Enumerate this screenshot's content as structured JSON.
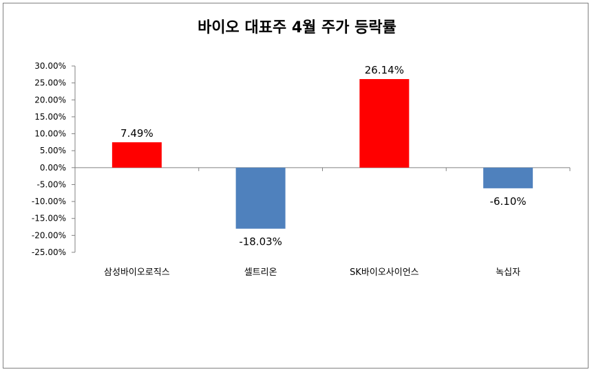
{
  "chart_data": {
    "type": "bar",
    "title": "바이오 대표주  4월 주가 등락률",
    "categories": [
      "삼성바이오로직스",
      "셀트리온",
      "SK바이오사이언스",
      "녹십자"
    ],
    "values": [
      7.49,
      -18.03,
      26.14,
      -6.1
    ],
    "data_labels": [
      "7.49%",
      "-18.03%",
      "26.14%",
      "-6.10%"
    ],
    "ylim": [
      -25,
      30
    ],
    "yticks": [
      30,
      25,
      20,
      15,
      10,
      5,
      0,
      -5,
      -10,
      -15,
      -20,
      -25
    ],
    "ytick_labels": [
      "30.00%",
      "25.00%",
      "20.00%",
      "15.00%",
      "10.00%",
      "5.00%",
      "0.00%",
      "-5.00%",
      "-10.00%",
      "-15.00%",
      "-20.00%",
      "-25.00%"
    ],
    "grid": false,
    "legend": "none",
    "colors": {
      "positive": "#ff0000",
      "negative": "#4f81bd",
      "axis": "#808080"
    }
  }
}
